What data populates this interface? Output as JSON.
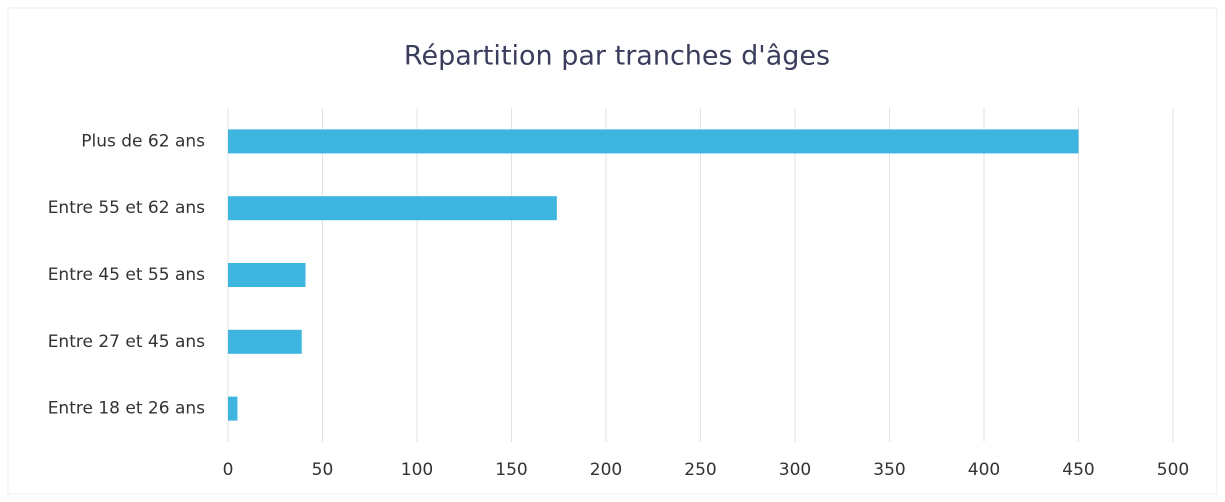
{
  "chart_data": {
    "type": "barh",
    "title": "Répartition par tranches d'âges",
    "categories": [
      "Plus de 62 ans",
      "Entre 55 et 62 ans",
      "Entre 45 et 55 ans",
      "Entre 27 et 45 ans",
      "Entre 18 et 26 ans"
    ],
    "values": [
      450,
      174,
      41,
      39,
      5
    ],
    "color": "#3db5de",
    "xlim": [
      0,
      500
    ],
    "xticks": [
      0,
      50,
      100,
      150,
      200,
      250,
      300,
      350,
      400,
      450,
      500
    ],
    "grid": true
  }
}
